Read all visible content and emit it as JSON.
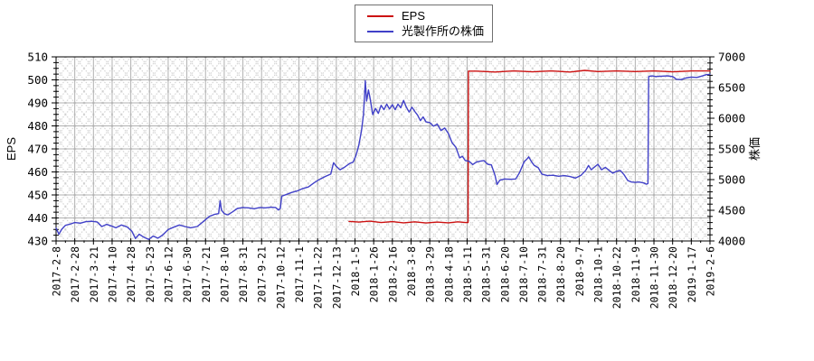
{
  "legend": {
    "items": [
      {
        "label": "EPS",
        "color": "#cc1111"
      },
      {
        "label": "光製作所の株価",
        "color": "#4040c8"
      }
    ]
  },
  "chart_data": {
    "type": "line",
    "title": "",
    "grid": true,
    "legend_position": "top-center",
    "background_hatch": true,
    "colors": {
      "grid": "#b0b0b0",
      "hatch": "#cccccc",
      "axis": "#000000"
    },
    "x_axis": {
      "labels": [
        "2017-2-8",
        "2017-2-28",
        "2017-3-21",
        "2017-4-10",
        "2017-4-28",
        "2017-5-23",
        "2017-6-12",
        "2017-6-30",
        "2017-7-21",
        "2017-8-10",
        "2017-8-31",
        "2017-9-21",
        "2017-10-12",
        "2017-11-1",
        "2017-11-22",
        "2017-12-13",
        "2018-1-5",
        "2018-1-26",
        "2018-2-16",
        "2018-3-8",
        "2018-3-29",
        "2018-4-18",
        "2018-5-11",
        "2018-5-31",
        "2018-6-20",
        "2018-7-10",
        "2018-7-31",
        "2018-8-20",
        "2018-9-7",
        "2018-10-1",
        "2018-10-22",
        "2018-11-9",
        "2018-11-30",
        "2018-12-20",
        "2019-1-17",
        "2019-2-6"
      ]
    },
    "left_axis": {
      "title": "EPS",
      "min": 430,
      "max": 510,
      "tick_step": 10,
      "minor_step": 2.5,
      "ticks": [
        430,
        440,
        450,
        460,
        470,
        480,
        490,
        500,
        510
      ]
    },
    "right_axis": {
      "title": "株価",
      "min": 4000,
      "max": 7000,
      "tick_step": 500,
      "minor_step": 100,
      "ticks": [
        4000,
        4500,
        5000,
        5500,
        6000,
        6500,
        7000
      ]
    },
    "series": [
      {
        "name": "EPS",
        "color": "#cc1111",
        "axis": "left",
        "points": [
          [
            15.68,
            438.5
          ],
          [
            16.2,
            438.2
          ],
          [
            16.8,
            438.6
          ],
          [
            17.4,
            438.0
          ],
          [
            18.0,
            438.4
          ],
          [
            18.6,
            437.9
          ],
          [
            19.2,
            438.3
          ],
          [
            19.8,
            437.8
          ],
          [
            20.4,
            438.2
          ],
          [
            21.0,
            437.9
          ],
          [
            21.5,
            438.3
          ],
          [
            21.9,
            438.0
          ],
          [
            22.05,
            438.0
          ],
          [
            22.07,
            503.8
          ],
          [
            22.5,
            503.8
          ],
          [
            23.5,
            503.4
          ],
          [
            24.5,
            503.9
          ],
          [
            25.5,
            503.5
          ],
          [
            26.5,
            503.9
          ],
          [
            27.5,
            503.4
          ],
          [
            28.3,
            504.1
          ],
          [
            29.0,
            503.6
          ],
          [
            30.0,
            503.9
          ],
          [
            31.0,
            503.6
          ],
          [
            32.0,
            503.9
          ],
          [
            33.0,
            503.5
          ],
          [
            34.0,
            503.9
          ],
          [
            35.0,
            503.9
          ]
        ]
      },
      {
        "name": "光製作所の株価",
        "color": "#4040c8",
        "axis": "right",
        "points": [
          [
            0,
            4210
          ],
          [
            0.15,
            4110
          ],
          [
            0.3,
            4190
          ],
          [
            0.5,
            4255
          ],
          [
            0.8,
            4280
          ],
          [
            1.0,
            4300
          ],
          [
            1.3,
            4290
          ],
          [
            1.6,
            4315
          ],
          [
            1.9,
            4320
          ],
          [
            2.2,
            4310
          ],
          [
            2.45,
            4235
          ],
          [
            2.7,
            4270
          ],
          [
            3.0,
            4240
          ],
          [
            3.2,
            4215
          ],
          [
            3.5,
            4260
          ],
          [
            3.8,
            4230
          ],
          [
            4.05,
            4160
          ],
          [
            4.25,
            4040
          ],
          [
            4.45,
            4110
          ],
          [
            4.7,
            4060
          ],
          [
            4.95,
            4025
          ],
          [
            5.2,
            4080
          ],
          [
            5.45,
            4045
          ],
          [
            5.7,
            4095
          ],
          [
            6.0,
            4185
          ],
          [
            6.3,
            4225
          ],
          [
            6.6,
            4260
          ],
          [
            6.9,
            4235
          ],
          [
            7.2,
            4215
          ],
          [
            7.55,
            4235
          ],
          [
            7.9,
            4320
          ],
          [
            8.2,
            4400
          ],
          [
            8.5,
            4435
          ],
          [
            8.7,
            4445
          ],
          [
            8.78,
            4655
          ],
          [
            8.85,
            4505
          ],
          [
            9.0,
            4445
          ],
          [
            9.2,
            4425
          ],
          [
            9.45,
            4475
          ],
          [
            9.7,
            4530
          ],
          [
            10.0,
            4545
          ],
          [
            10.3,
            4540
          ],
          [
            10.6,
            4525
          ],
          [
            10.9,
            4545
          ],
          [
            11.2,
            4540
          ],
          [
            11.5,
            4550
          ],
          [
            11.75,
            4545
          ],
          [
            11.9,
            4505
          ],
          [
            12.0,
            4530
          ],
          [
            12.08,
            4730
          ],
          [
            12.3,
            4755
          ],
          [
            12.6,
            4790
          ],
          [
            12.9,
            4815
          ],
          [
            13.2,
            4855
          ],
          [
            13.5,
            4880
          ],
          [
            13.8,
            4945
          ],
          [
            14.1,
            5005
          ],
          [
            14.4,
            5050
          ],
          [
            14.7,
            5090
          ],
          [
            14.85,
            5275
          ],
          [
            15.0,
            5215
          ],
          [
            15.2,
            5160
          ],
          [
            15.45,
            5205
          ],
          [
            15.7,
            5260
          ],
          [
            15.9,
            5285
          ],
          [
            16.05,
            5390
          ],
          [
            16.2,
            5550
          ],
          [
            16.35,
            5800
          ],
          [
            16.45,
            6050
          ],
          [
            16.5,
            6300
          ],
          [
            16.55,
            6610
          ],
          [
            16.62,
            6280
          ],
          [
            16.72,
            6460
          ],
          [
            16.8,
            6340
          ],
          [
            16.95,
            6060
          ],
          [
            17.1,
            6160
          ],
          [
            17.25,
            6080
          ],
          [
            17.4,
            6210
          ],
          [
            17.55,
            6140
          ],
          [
            17.7,
            6230
          ],
          [
            17.85,
            6150
          ],
          [
            18.0,
            6220
          ],
          [
            18.15,
            6140
          ],
          [
            18.3,
            6230
          ],
          [
            18.45,
            6170
          ],
          [
            18.6,
            6290
          ],
          [
            18.75,
            6180
          ],
          [
            18.9,
            6100
          ],
          [
            19.05,
            6180
          ],
          [
            19.2,
            6110
          ],
          [
            19.35,
            6050
          ],
          [
            19.5,
            5960
          ],
          [
            19.65,
            6020
          ],
          [
            19.8,
            5940
          ],
          [
            20.0,
            5930
          ],
          [
            20.2,
            5870
          ],
          [
            20.4,
            5905
          ],
          [
            20.6,
            5800
          ],
          [
            20.8,
            5840
          ],
          [
            21.0,
            5750
          ],
          [
            21.2,
            5600
          ],
          [
            21.4,
            5525
          ],
          [
            21.6,
            5355
          ],
          [
            21.75,
            5380
          ],
          [
            21.9,
            5310
          ],
          [
            22.1,
            5300
          ],
          [
            22.3,
            5245
          ],
          [
            22.5,
            5285
          ],
          [
            22.7,
            5300
          ],
          [
            22.9,
            5310
          ],
          [
            23.1,
            5250
          ],
          [
            23.3,
            5240
          ],
          [
            23.5,
            5065
          ],
          [
            23.6,
            4920
          ],
          [
            23.75,
            4990
          ],
          [
            24.0,
            5010
          ],
          [
            24.3,
            5005
          ],
          [
            24.6,
            5010
          ],
          [
            24.8,
            5110
          ],
          [
            25.05,
            5290
          ],
          [
            25.2,
            5335
          ],
          [
            25.3,
            5370
          ],
          [
            25.45,
            5290
          ],
          [
            25.6,
            5230
          ],
          [
            25.8,
            5195
          ],
          [
            26.0,
            5090
          ],
          [
            26.3,
            5065
          ],
          [
            26.6,
            5070
          ],
          [
            26.9,
            5055
          ],
          [
            27.2,
            5065
          ],
          [
            27.5,
            5050
          ],
          [
            27.8,
            5025
          ],
          [
            28.1,
            5070
          ],
          [
            28.35,
            5150
          ],
          [
            28.5,
            5230
          ],
          [
            28.65,
            5160
          ],
          [
            28.8,
            5200
          ],
          [
            29.0,
            5250
          ],
          [
            29.2,
            5160
          ],
          [
            29.4,
            5200
          ],
          [
            29.6,
            5150
          ],
          [
            29.8,
            5105
          ],
          [
            30.0,
            5135
          ],
          [
            30.2,
            5150
          ],
          [
            30.4,
            5080
          ],
          [
            30.6,
            4985
          ],
          [
            30.8,
            4960
          ],
          [
            31.0,
            4955
          ],
          [
            31.2,
            4960
          ],
          [
            31.45,
            4945
          ],
          [
            31.6,
            4925
          ],
          [
            31.68,
            4935
          ],
          [
            31.72,
            6680
          ],
          [
            31.9,
            6690
          ],
          [
            32.1,
            6680
          ],
          [
            32.4,
            6685
          ],
          [
            32.7,
            6690
          ],
          [
            33.0,
            6680
          ],
          [
            33.2,
            6635
          ],
          [
            33.45,
            6630
          ],
          [
            33.7,
            6655
          ],
          [
            34.0,
            6670
          ],
          [
            34.3,
            6665
          ],
          [
            34.6,
            6690
          ],
          [
            34.8,
            6710
          ],
          [
            35.0,
            6715
          ]
        ]
      }
    ]
  }
}
